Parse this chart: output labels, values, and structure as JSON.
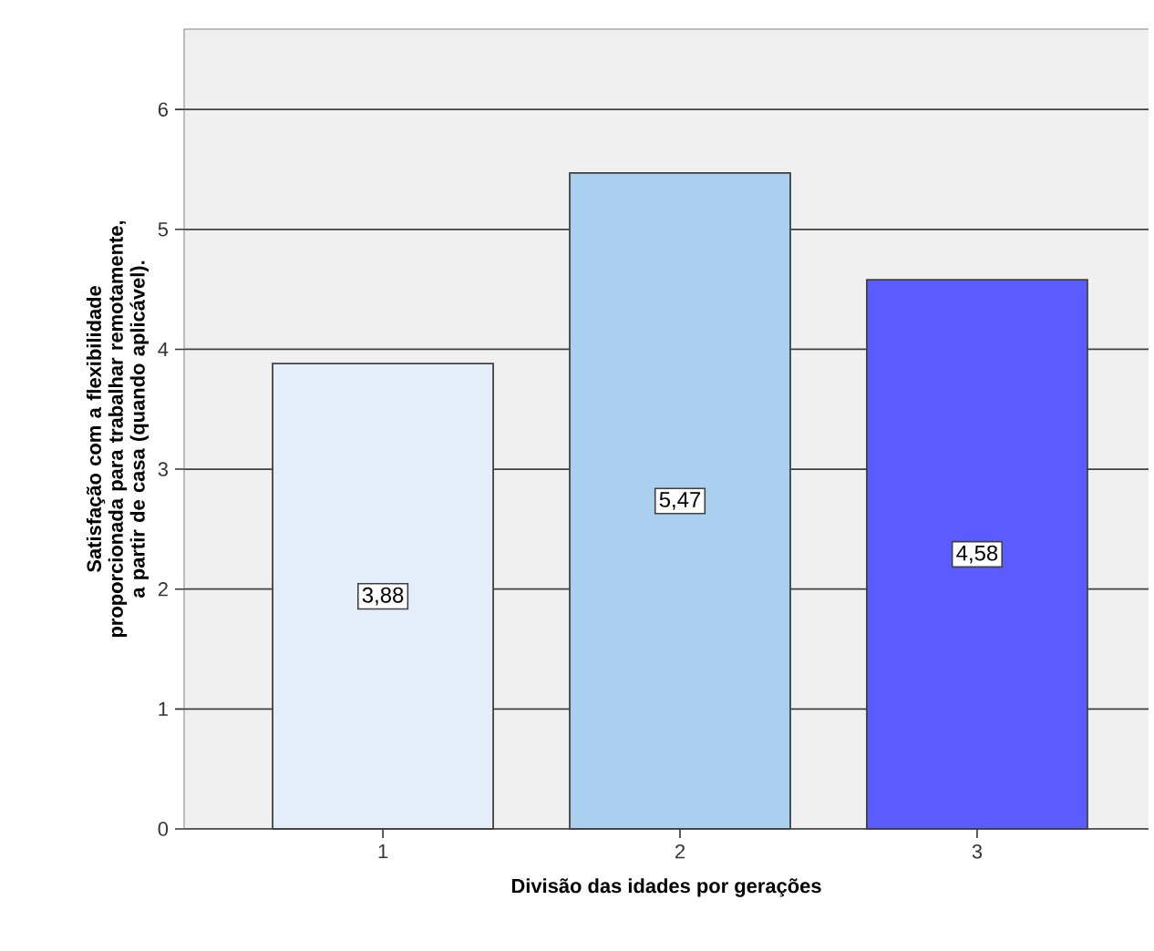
{
  "chart_data": {
    "type": "bar",
    "xlabel": "Divisão das idades por gerações",
    "ylabel": "Satisfação com a flexibilidade proporcionada para trabalhar remotamente, a partir de casa (quando aplicável).",
    "categories": [
      "1",
      "2",
      "3"
    ],
    "values": [
      3.88,
      5.47,
      4.58
    ],
    "value_labels": [
      "3,88",
      "5,47",
      "4,58"
    ],
    "colors": [
      "#e3eefa",
      "#abcfee",
      "#5b5cff"
    ],
    "ylim": [
      0,
      6.67
    ],
    "yticks": [
      0,
      1,
      2,
      3,
      4,
      5,
      6
    ],
    "grid": "y"
  }
}
